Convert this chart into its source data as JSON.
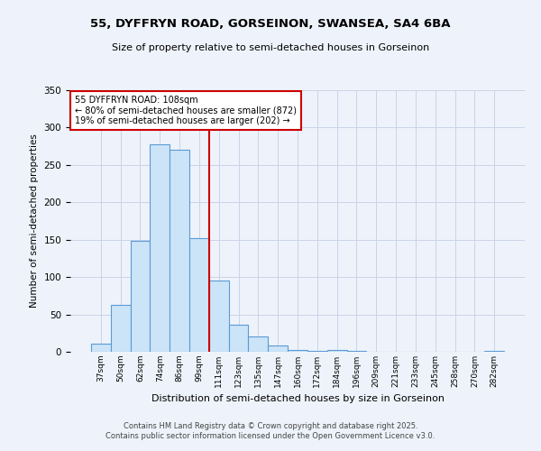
{
  "title": "55, DYFFRYN ROAD, GORSEINON, SWANSEA, SA4 6BA",
  "subtitle": "Size of property relative to semi-detached houses in Gorseinon",
  "xlabel": "Distribution of semi-detached houses by size in Gorseinon",
  "ylabel": "Number of semi-detached properties",
  "bar_labels": [
    "37sqm",
    "50sqm",
    "62sqm",
    "74sqm",
    "86sqm",
    "99sqm",
    "111sqm",
    "123sqm",
    "135sqm",
    "147sqm",
    "160sqm",
    "172sqm",
    "184sqm",
    "196sqm",
    "209sqm",
    "221sqm",
    "233sqm",
    "245sqm",
    "258sqm",
    "270sqm",
    "282sqm"
  ],
  "bar_values": [
    11,
    63,
    148,
    278,
    270,
    152,
    95,
    36,
    21,
    9,
    3,
    1,
    3,
    1,
    0,
    0,
    0,
    0,
    0,
    0,
    1
  ],
  "bar_color": "#cce4f7",
  "bar_edge_color": "#5b9bd5",
  "vline_color": "#cc0000",
  "ylim": [
    0,
    350
  ],
  "yticks": [
    0,
    50,
    100,
    150,
    200,
    250,
    300,
    350
  ],
  "annotation_title": "55 DYFFRYN ROAD: 108sqm",
  "annotation_line1": "← 80% of semi-detached houses are smaller (872)",
  "annotation_line2": "19% of semi-detached houses are larger (202) →",
  "footer1": "Contains HM Land Registry data © Crown copyright and database right 2025.",
  "footer2": "Contains public sector information licensed under the Open Government Licence v3.0.",
  "bg_color": "#eef3fb",
  "grid_color": "#c8d4e8"
}
